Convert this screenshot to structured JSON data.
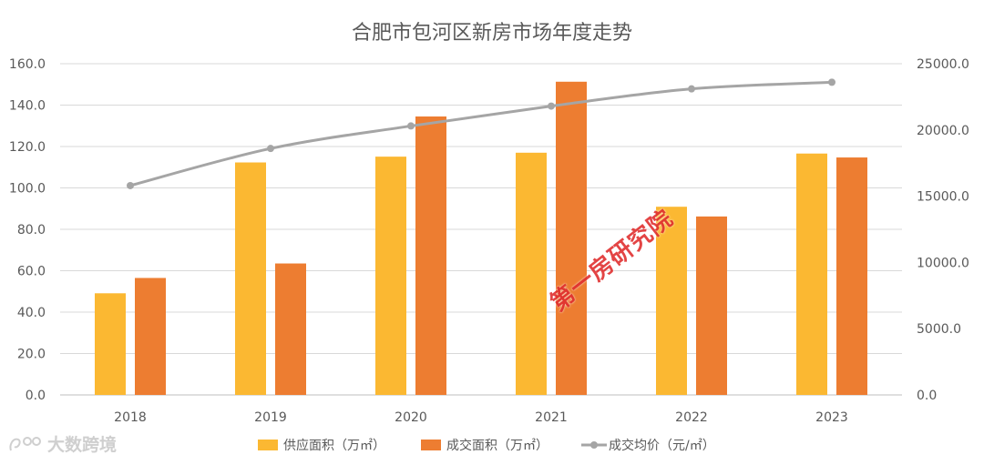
{
  "chart_data": {
    "type": "bar",
    "title": "合肥市包河区新房市场年度走势",
    "categories": [
      "2018",
      "2019",
      "2020",
      "2021",
      "2022",
      "2023"
    ],
    "series": [
      {
        "name": "供应面积（万㎡）",
        "type": "bar",
        "axis": "left",
        "color": "#FBB832",
        "values": [
          49.1,
          112.3,
          115.1,
          117.0,
          90.9,
          116.6
        ]
      },
      {
        "name": "成交面积（万㎡）",
        "type": "bar",
        "axis": "left",
        "color": "#ED7D31",
        "values": [
          56.5,
          63.5,
          134.5,
          151.3,
          86.2,
          114.7
        ]
      },
      {
        "name": "成交均价（元/㎡）",
        "type": "line",
        "axis": "right",
        "color": "#A5A5A5",
        "values": [
          15800,
          18600,
          20300,
          21800,
          23100,
          23600
        ]
      }
    ],
    "ylim_left": [
      0,
      160
    ],
    "ylim_right": [
      0,
      25000
    ],
    "left_ticks": [
      "0.0",
      "20.0",
      "40.0",
      "60.0",
      "80.0",
      "100.0",
      "120.0",
      "140.0",
      "160.0"
    ],
    "right_ticks": [
      "0.0",
      "5000.0",
      "10000.0",
      "15000.0",
      "20000.0",
      "25000.0"
    ],
    "grid": true,
    "legend_position": "bottom"
  },
  "watermark_text": "第一房研究院",
  "brand_text": "大数跨境"
}
